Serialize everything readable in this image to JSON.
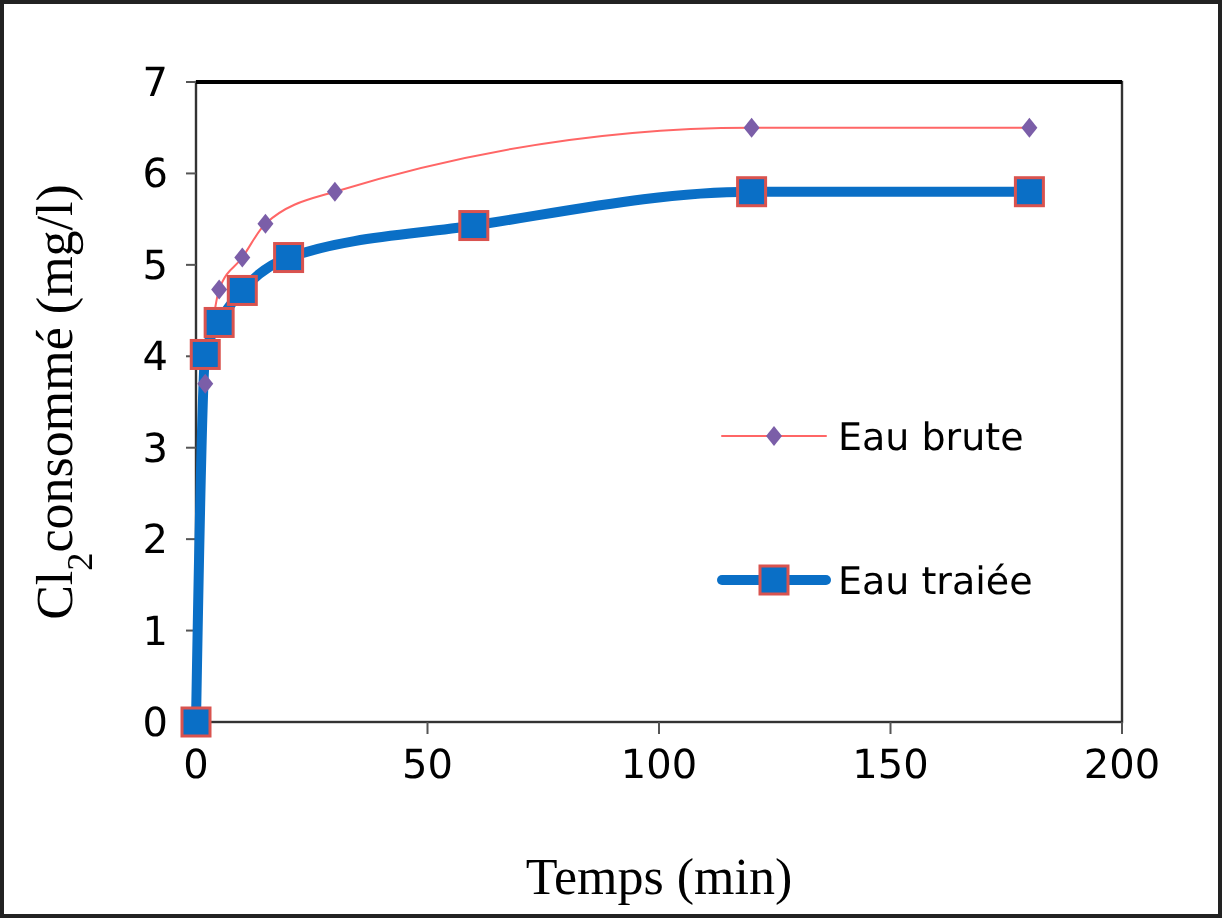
{
  "chart_data": {
    "type": "line",
    "xlabel": "Temps (min)",
    "ylabel": "Cl$_{2}$consommé (mg/l)",
    "xlim": [
      0,
      200
    ],
    "xticks": [
      0,
      50,
      100,
      150,
      200
    ],
    "ylim": [
      0,
      7
    ],
    "yticks": [
      0,
      1,
      2,
      3,
      4,
      5,
      6,
      7
    ],
    "grid": false,
    "legend": "right",
    "series": [
      {
        "name": "Eau brute",
        "color": "#ff6666",
        "marker": "diamond",
        "x": [
          2,
          5,
          10,
          15,
          30,
          120,
          180
        ],
        "values": [
          3.7,
          4.73,
          5.08,
          5.45,
          5.8,
          6.5,
          6.5
        ]
      },
      {
        "name": "Eau traiée",
        "color": "#0a6fc6",
        "marker": "square",
        "x": [
          0,
          2,
          5,
          10,
          20,
          60,
          120,
          180
        ],
        "values": [
          0,
          4.02,
          4.37,
          4.72,
          5.08,
          5.43,
          5.8,
          5.8
        ]
      }
    ]
  }
}
